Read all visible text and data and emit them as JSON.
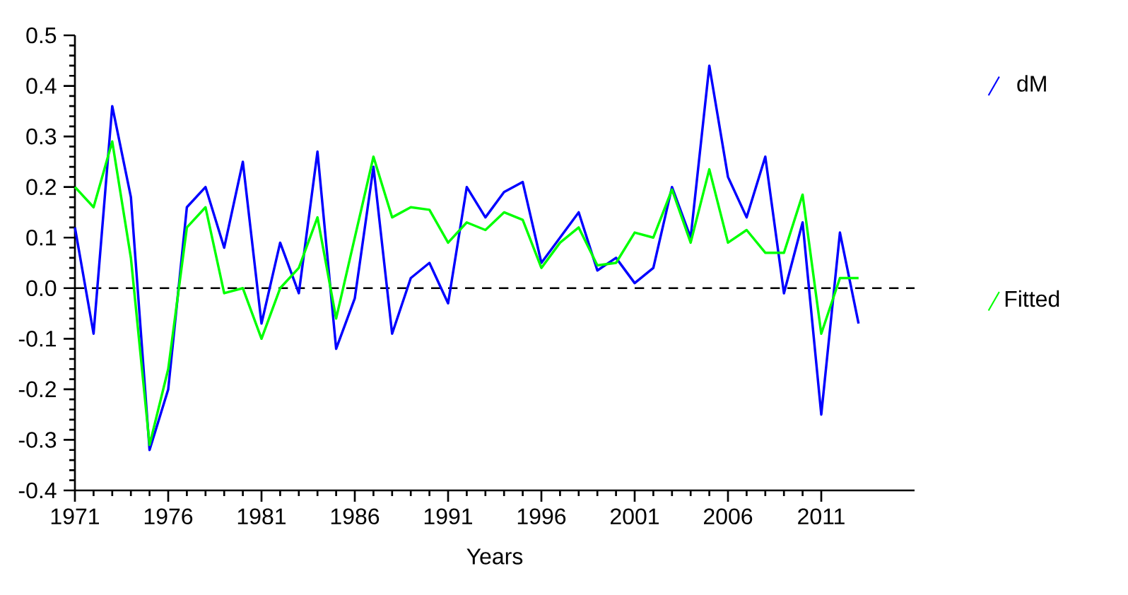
{
  "chart_data": {
    "type": "line",
    "xlabel": "Years",
    "x": [
      1971,
      1972,
      1973,
      1974,
      1975,
      1976,
      1977,
      1978,
      1979,
      1980,
      1981,
      1982,
      1983,
      1984,
      1985,
      1986,
      1987,
      1988,
      1989,
      1990,
      1991,
      1992,
      1993,
      1994,
      1995,
      1996,
      1997,
      1998,
      1999,
      2000,
      2001,
      2002,
      2003,
      2004,
      2005,
      2006,
      2007,
      2008,
      2009,
      2010,
      2011,
      2012,
      2013
    ],
    "series": [
      {
        "name": "dM",
        "color": "#0000ff",
        "values": [
          0.12,
          -0.09,
          0.36,
          0.18,
          -0.32,
          -0.2,
          0.16,
          0.2,
          0.08,
          0.25,
          -0.07,
          0.09,
          -0.01,
          0.27,
          -0.12,
          -0.02,
          0.24,
          -0.09,
          0.02,
          0.05,
          -0.03,
          0.2,
          0.14,
          0.19,
          0.21,
          0.05,
          0.1,
          0.15,
          0.035,
          0.06,
          0.01,
          0.04,
          0.2,
          0.1,
          0.44,
          0.22,
          0.14,
          0.26,
          -0.01,
          0.13,
          -0.25,
          0.11,
          -0.07
        ]
      },
      {
        "name": "Fitted",
        "color": "#00ff00",
        "values": [
          0.2,
          0.16,
          0.29,
          0.06,
          -0.31,
          -0.16,
          0.12,
          0.16,
          -0.01,
          0.0,
          -0.1,
          0.0,
          0.04,
          0.14,
          -0.06,
          0.1,
          0.26,
          0.14,
          0.16,
          0.155,
          0.09,
          0.13,
          0.115,
          0.15,
          0.135,
          0.04,
          0.09,
          0.12,
          0.045,
          0.05,
          0.11,
          0.1,
          0.195,
          0.09,
          0.235,
          0.09,
          0.115,
          0.07,
          0.07,
          0.185,
          -0.09,
          0.02,
          0.02
        ]
      }
    ],
    "xlim": [
      1971,
      2016
    ],
    "xticks": [
      1971,
      1976,
      1981,
      1986,
      1991,
      1996,
      2001,
      2006,
      2011
    ],
    "ylim": [
      -0.4,
      0.5
    ],
    "yticks": [
      -0.4,
      -0.3,
      -0.2,
      -0.1,
      {
        "value": 0,
        "label": "0.0"
      },
      0.1,
      0.2,
      0.3,
      0.4,
      0.5
    ],
    "ref_lines": [
      {
        "axis": "y",
        "value": 0,
        "color": "#000000",
        "line_style": "dashed"
      }
    ],
    "legend": "right",
    "grid": false,
    "marker": "none",
    "line_style": "solid"
  }
}
